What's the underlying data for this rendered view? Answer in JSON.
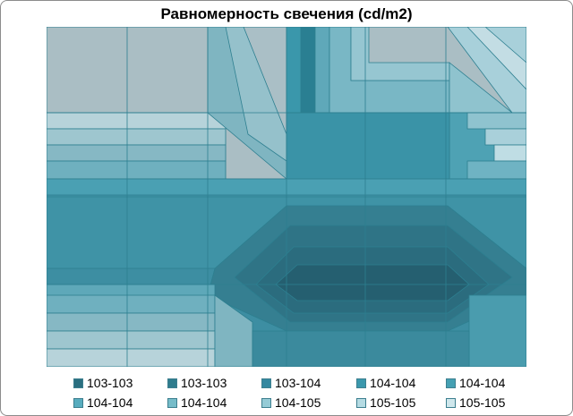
{
  "chart_data": {
    "type": "heatmap",
    "title": "Равномерность свечения (cd/m2)",
    "xlabel": "",
    "ylabel": "",
    "grid": true,
    "legend_position": "bottom",
    "legend": [
      {
        "label": "103-103",
        "color": "#2a6f80"
      },
      {
        "label": "103-103",
        "color": "#2f7c8d"
      },
      {
        "label": "103-104",
        "color": "#3488a0"
      },
      {
        "label": "104-104",
        "color": "#3b98ad"
      },
      {
        "label": "104-104",
        "color": "#45a0b3"
      },
      {
        "label": "104-104",
        "color": "#58acbe"
      },
      {
        "label": "104-104",
        "color": "#76bcc9"
      },
      {
        "label": "104-105",
        "color": "#95cbd6"
      },
      {
        "label": "105-105",
        "color": "#b5dbe3"
      },
      {
        "label": "105-105",
        "color": "#cfe7ec"
      }
    ],
    "background_color": "#aabec4",
    "line_color": "#2d7f90"
  }
}
